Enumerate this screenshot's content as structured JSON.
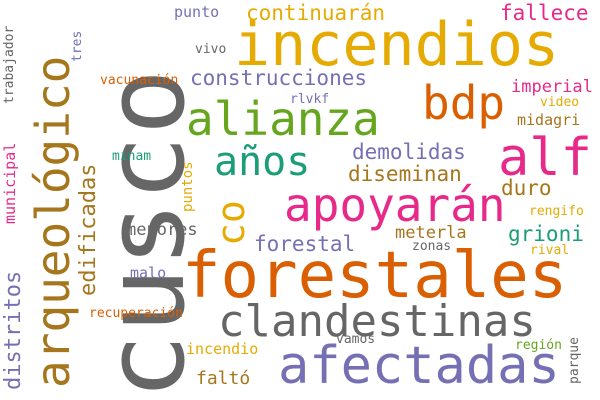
{
  "palette": {
    "grey": "#666666",
    "orange": "#d95f02",
    "gold": "#e6ab02",
    "green": "#1b9e77",
    "lime": "#66a61e",
    "purple": "#7570b3",
    "magenta": "#e7298a",
    "brown": "#a6761d"
  },
  "words": {
    "cusco": "cusco",
    "incendios": "incendios",
    "forestales": "forestales",
    "arqueologico": "arqueológico",
    "alianza": "alianza",
    "apoyaran": "apoyarán",
    "afectadas": "afectadas",
    "clandestinas": "clandestinas",
    "alf": "alf",
    "bdp": "bdp",
    "anos": "años",
    "co": "co",
    "continuaran": "continuarán",
    "construcciones": "construcciones",
    "demolidas": "demolidas",
    "diseminan": "diseminan",
    "duro": "duro",
    "forestal": "forestal",
    "grioni": "grioni",
    "edificadas": "edificadas",
    "distritos": "distritos",
    "fallece": "fallece",
    "imperial": "imperial",
    "midagri": "midagri",
    "video": "video",
    "rengifo": "rengifo",
    "rival": "rival",
    "zonas": "zonas",
    "meterla": "meterla",
    "menores": "menores",
    "malo": "malo",
    "minam": "minam",
    "puntos": "puntos",
    "punto": "punto",
    "vivo": "vivo",
    "tres": "tres",
    "vacunacion": "vacunación",
    "rlvkf": "rlvkf",
    "trabajador": "trabajador",
    "municipal": "municipal",
    "recuperacion": "recuperación",
    "incendio": "incendio",
    "vamos": "vamos",
    "falto": "faltó",
    "region": "región",
    "parque": "parque"
  }
}
